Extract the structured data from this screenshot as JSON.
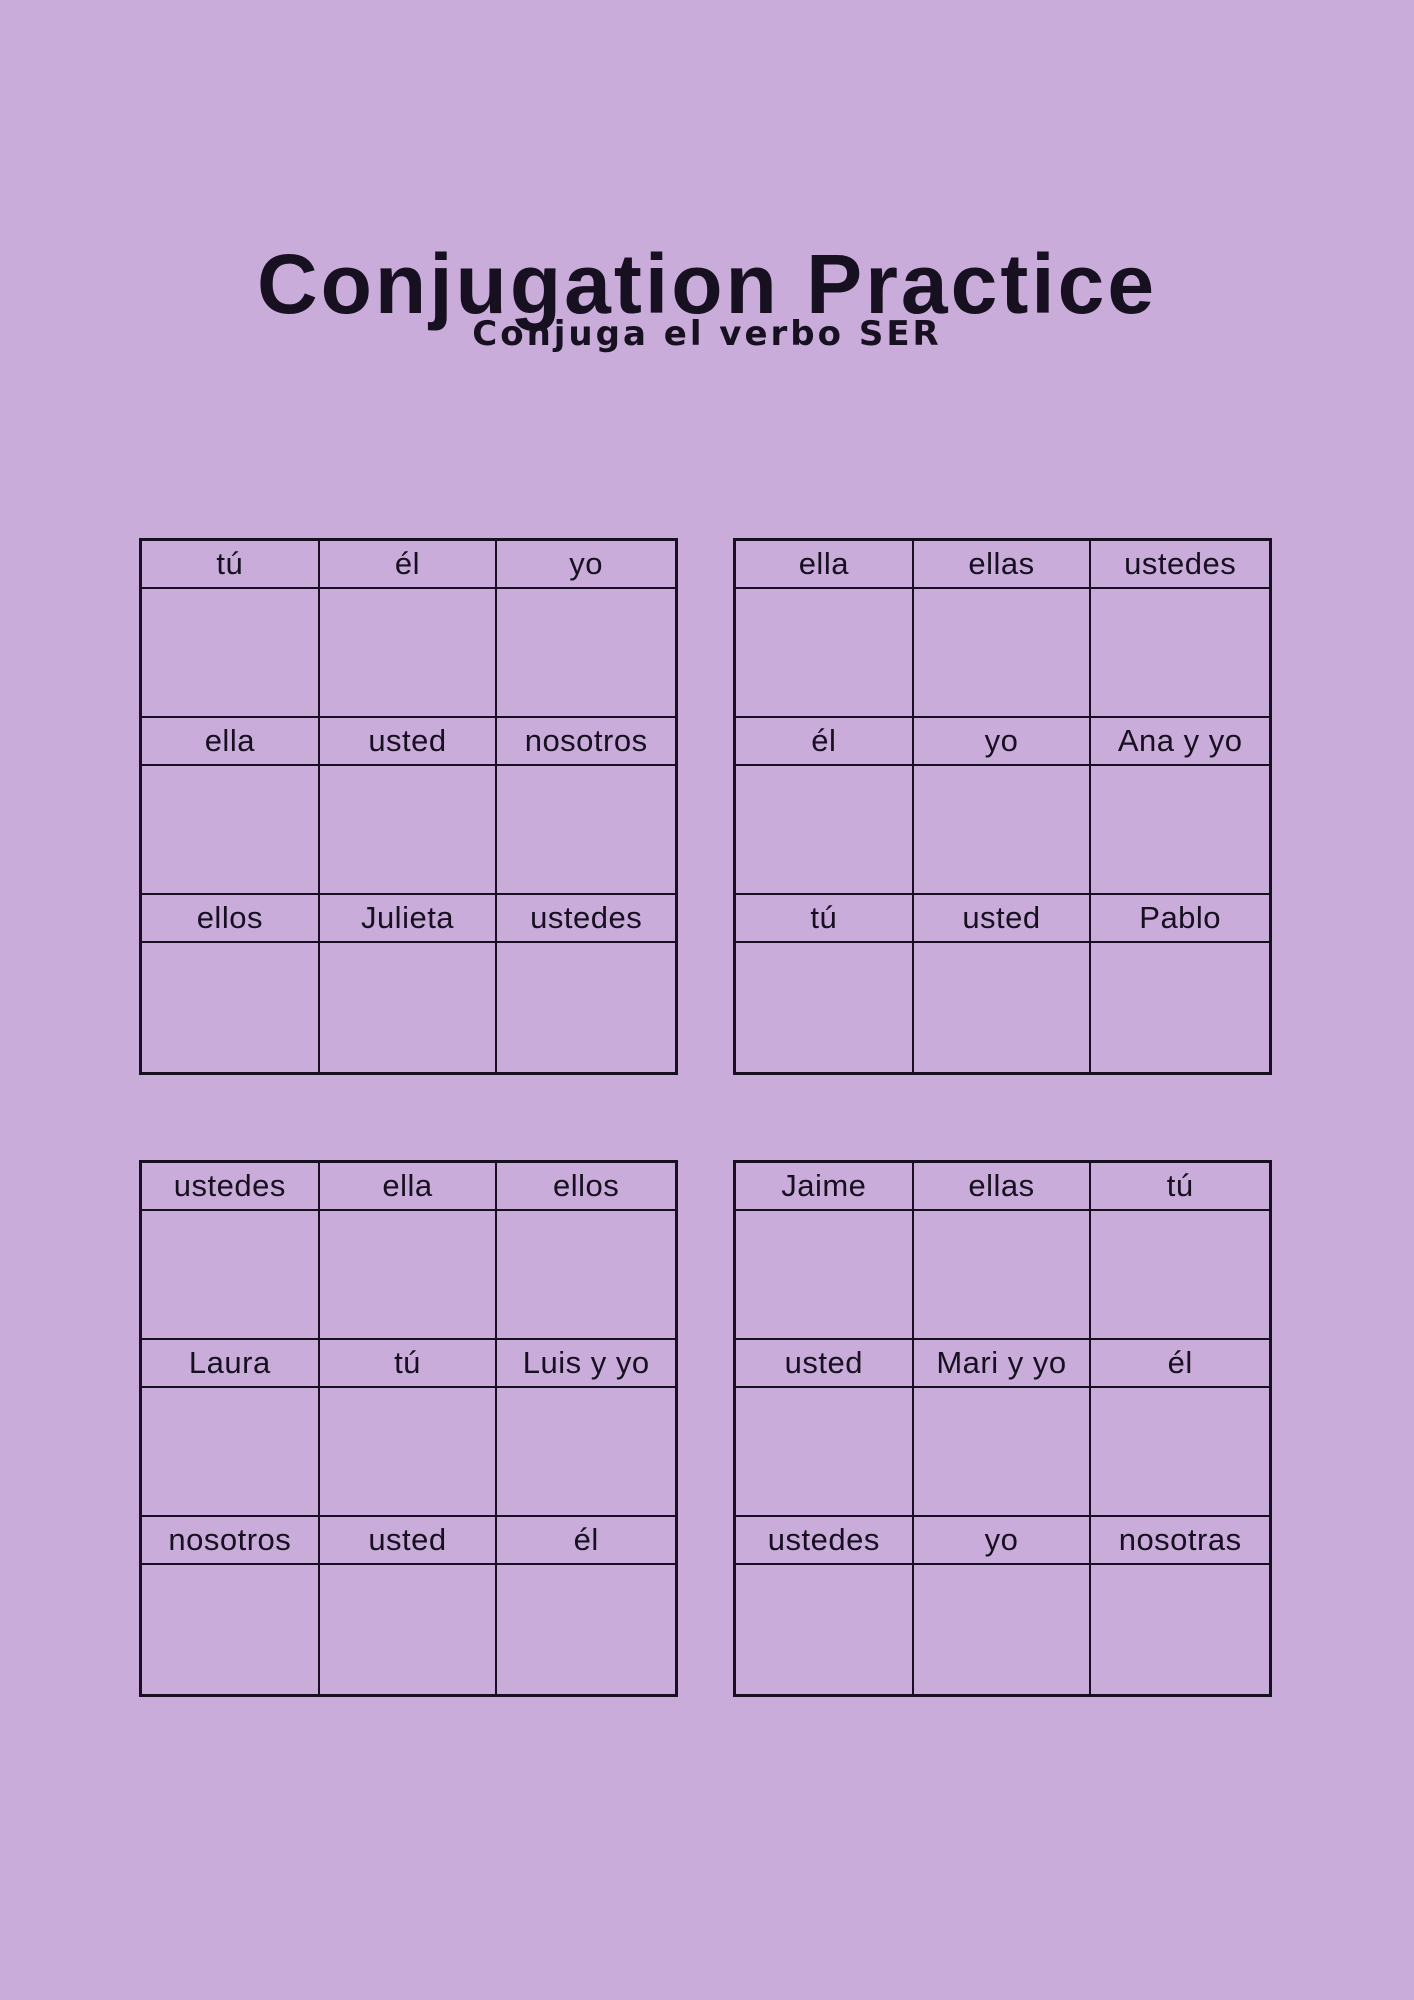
{
  "page": {
    "title": "Conjugation Practice",
    "subtitle": "Conjuga el verbo SER"
  },
  "colors": {
    "background": "#c9acd9",
    "ink": "#171021"
  },
  "tables": [
    {
      "name": "top-left",
      "rows": [
        [
          "tú",
          "él",
          "yo"
        ],
        [
          "ella",
          "usted",
          "nosotros"
        ],
        [
          "ellos",
          "Julieta",
          "ustedes"
        ]
      ]
    },
    {
      "name": "top-right",
      "rows": [
        [
          "ella",
          "ellas",
          "ustedes"
        ],
        [
          "él",
          "yo",
          "Ana y yo"
        ],
        [
          "tú",
          "usted",
          "Pablo"
        ]
      ]
    },
    {
      "name": "bottom-left",
      "rows": [
        [
          "ustedes",
          "ella",
          "ellos"
        ],
        [
          "Laura",
          "tú",
          "Luis y yo"
        ],
        [
          "nosotros",
          "usted",
          "él"
        ]
      ]
    },
    {
      "name": "bottom-right",
      "rows": [
        [
          "Jaime",
          "ellas",
          "tú"
        ],
        [
          "usted",
          "Mari y yo",
          "él"
        ],
        [
          "ustedes",
          "yo",
          "nosotras"
        ]
      ]
    }
  ]
}
